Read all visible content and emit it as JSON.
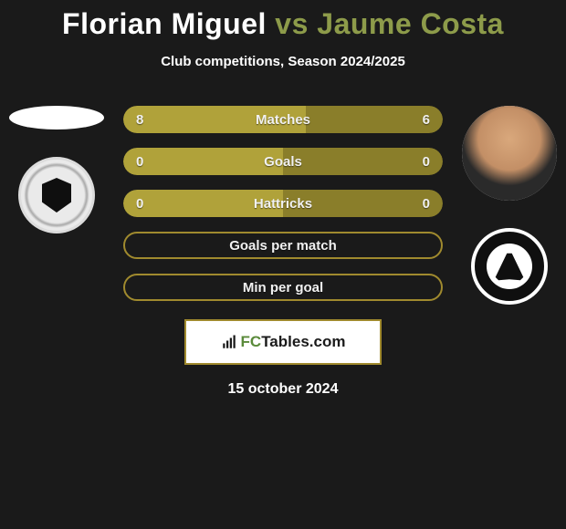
{
  "header": {
    "player1": "Florian Miguel",
    "vs": "vs",
    "player2": "Jaume Costa",
    "subtitle": "Club competitions, Season 2024/2025"
  },
  "colors": {
    "bar_olive_light": "#b0a23a",
    "bar_olive_dark": "#8a7e2a",
    "bar_border": "#a08a2e",
    "page_bg": "#1a1a1a",
    "text_white": "#ffffff",
    "accent_olive": "#8d9b4a"
  },
  "stats": [
    {
      "label": "Matches",
      "left_val": "8",
      "right_val": "6",
      "left_pct": 57,
      "right_pct": 43,
      "left_color": "#b0a23a",
      "right_color": "#8a7e2a"
    },
    {
      "label": "Goals",
      "left_val": "0",
      "right_val": "0",
      "left_pct": 50,
      "right_pct": 50,
      "left_color": "#b0a23a",
      "right_color": "#8a7e2a"
    },
    {
      "label": "Hattricks",
      "left_val": "0",
      "right_val": "0",
      "left_pct": 50,
      "right_pct": 50,
      "left_color": "#b0a23a",
      "right_color": "#8a7e2a"
    },
    {
      "label": "Goals per match",
      "left_val": "",
      "right_val": "",
      "left_pct": 0,
      "right_pct": 0,
      "left_color": "#b0a23a",
      "right_color": "#8a7e2a",
      "empty": true
    },
    {
      "label": "Min per goal",
      "left_val": "",
      "right_val": "",
      "left_pct": 0,
      "right_pct": 0,
      "left_color": "#b0a23a",
      "right_color": "#8a7e2a",
      "empty": true
    }
  ],
  "branding": {
    "prefix": "FC",
    "suffix": "Tables.com"
  },
  "date": "15 october 2024",
  "left_side": {
    "player_icon": "player-silhouette",
    "club_icon": "burgos-cf-badge"
  },
  "right_side": {
    "player_icon": "player-photo",
    "club_icon": "albacete-badge"
  }
}
